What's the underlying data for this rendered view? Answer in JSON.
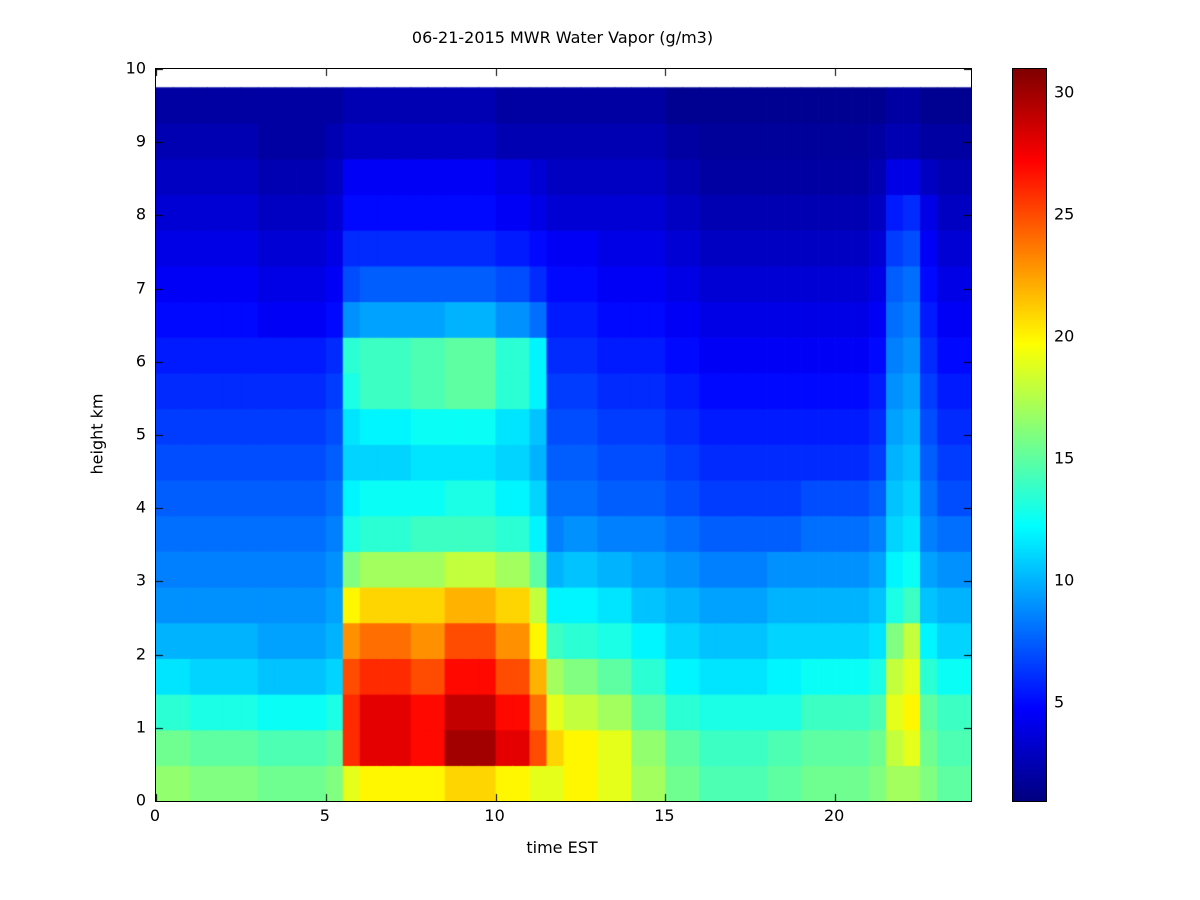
{
  "page": {
    "background_color": "#ffffff",
    "axis_color": "#000000"
  },
  "colorbar": {
    "ticks": [
      5,
      10,
      15,
      20,
      25,
      30
    ],
    "cmin": 1,
    "cmax": 31,
    "colormap": "jet"
  },
  "chart_data": {
    "type": "heatmap",
    "title": "06-21-2015 MWR Water Vapor (g/m3)",
    "xlabel": "time EST",
    "ylabel": "height km",
    "units": "g/m3",
    "colormap": "jet",
    "xlim": [
      0,
      24
    ],
    "ylim": [
      0,
      10
    ],
    "clim": [
      1,
      31
    ],
    "x_ticks": [
      0,
      5,
      10,
      15,
      20
    ],
    "y_ticks": [
      0,
      1,
      2,
      3,
      4,
      5,
      6,
      7,
      8,
      9,
      10
    ],
    "data_top_km": 9.75,
    "x_hours": [
      0.25,
      0.75,
      1.25,
      1.75,
      2.25,
      2.75,
      3.25,
      3.75,
      4.25,
      4.75,
      5.25,
      5.75,
      6.25,
      6.75,
      7.25,
      7.75,
      8.25,
      8.75,
      9.25,
      9.75,
      10.25,
      10.75,
      11.25,
      11.75,
      12.25,
      12.75,
      13.25,
      13.75,
      14.25,
      14.75,
      15.25,
      15.75,
      16.25,
      16.75,
      17.25,
      17.75,
      18.25,
      18.75,
      19.25,
      19.75,
      20.25,
      20.75,
      21.25,
      21.75,
      22.25,
      22.75,
      23.25,
      23.75
    ],
    "heights_km": [
      0.25,
      0.75,
      1.25,
      1.75,
      2.25,
      2.75,
      3.25,
      3.75,
      4.25,
      4.75,
      5.25,
      5.75,
      6.25,
      6.75,
      7.25,
      7.75,
      8.25,
      8.75,
      9.25,
      9.75
    ],
    "values": [
      [
        16.5,
        15.5,
        13.5,
        11.5,
        10,
        9,
        8.5,
        8,
        7.5,
        7,
        6.5,
        6,
        5.5,
        5,
        4.5,
        4,
        3.5,
        3,
        2.5,
        2
      ],
      [
        16.5,
        15.5,
        13.5,
        11.5,
        10,
        9,
        8.5,
        8,
        7.5,
        7,
        6.5,
        6,
        5.5,
        5,
        4.5,
        4,
        3.5,
        3,
        2.5,
        2
      ],
      [
        16,
        15,
        13,
        11,
        10,
        9,
        8.5,
        8,
        7.5,
        7,
        6.5,
        6,
        5.5,
        5,
        4.5,
        4,
        3.5,
        3,
        2.5,
        2
      ],
      [
        16,
        15,
        13,
        11,
        10,
        9,
        8.5,
        8,
        7.5,
        7,
        6.5,
        6,
        5.5,
        5,
        4.5,
        4,
        3.5,
        3,
        2.5,
        2
      ],
      [
        16,
        15,
        13,
        11,
        10,
        9,
        8.5,
        8,
        7.5,
        7,
        6.5,
        6,
        5.5,
        5,
        4.5,
        4,
        3.5,
        3,
        2.5,
        2
      ],
      [
        16,
        15,
        13,
        11,
        10,
        9,
        8.5,
        8,
        7.5,
        7,
        6.5,
        6,
        5.5,
        5,
        4.5,
        4,
        3.5,
        3,
        2.5,
        2
      ],
      [
        15.5,
        14.5,
        12.5,
        10.5,
        9.5,
        9,
        8.5,
        8,
        7.5,
        7,
        6.5,
        6,
        5.5,
        4.5,
        4,
        3.5,
        3,
        2.5,
        2,
        2
      ],
      [
        15.5,
        14.5,
        12.5,
        10.5,
        9.5,
        9,
        8.5,
        8,
        7.5,
        7,
        6.5,
        6,
        5.5,
        4.5,
        4,
        3.5,
        3,
        2.5,
        2,
        2
      ],
      [
        15.5,
        14.5,
        12.5,
        10.5,
        9.5,
        9,
        8.5,
        8,
        7.5,
        7,
        6.5,
        6,
        5.5,
        4.5,
        4,
        3.5,
        3,
        2.5,
        2,
        2
      ],
      [
        15.5,
        14.5,
        12.5,
        10.5,
        9.5,
        9,
        8.5,
        8,
        7.5,
        7,
        6.5,
        6,
        5.5,
        4.5,
        4,
        3.5,
        3,
        2.5,
        2,
        2
      ],
      [
        16,
        15,
        13,
        11,
        10,
        9.5,
        9,
        8.5,
        8,
        7.5,
        7,
        6.5,
        6,
        5,
        4.5,
        4,
        3.5,
        3,
        2.5,
        2
      ],
      [
        19,
        26,
        26,
        25,
        23,
        20,
        16,
        13,
        12,
        11,
        11.5,
        13,
        13.5,
        9,
        7,
        6,
        5,
        4.5,
        3,
        2.5
      ],
      [
        20,
        28,
        28,
        26,
        24,
        21,
        17,
        13.5,
        12.5,
        11,
        12,
        14,
        14,
        9.5,
        7.5,
        6,
        5,
        4.5,
        3,
        2.5
      ],
      [
        20,
        28,
        28,
        26,
        24,
        21,
        17,
        13.5,
        12.5,
        11,
        12,
        14,
        14,
        9.5,
        7.5,
        6,
        5,
        4.5,
        3,
        2.5
      ],
      [
        20,
        28,
        28,
        26,
        24,
        21,
        17,
        13.5,
        12.5,
        11,
        12,
        14,
        14,
        9.5,
        7.5,
        6,
        5,
        4.5,
        3,
        2.5
      ],
      [
        20,
        27,
        27,
        25,
        23,
        21,
        17,
        14,
        12.5,
        11.5,
        12.5,
        14.5,
        14.5,
        9.5,
        7.5,
        6,
        5,
        4.5,
        3,
        2.5
      ],
      [
        20,
        27,
        27,
        25,
        23,
        21,
        17,
        14,
        12.5,
        11.5,
        12.5,
        14.5,
        14.5,
        9.5,
        7.5,
        6,
        5,
        4.5,
        3,
        2.5
      ],
      [
        21,
        30,
        29,
        27,
        25,
        22,
        18,
        14,
        13,
        11.5,
        12.5,
        15,
        15,
        10,
        7.5,
        6,
        5,
        4.5,
        3,
        2.5
      ],
      [
        21,
        30,
        29,
        27,
        25,
        22,
        18,
        14,
        13,
        11.5,
        12.5,
        15,
        15,
        10,
        7.5,
        6,
        5,
        4.5,
        3,
        2.5
      ],
      [
        21,
        30,
        29,
        27,
        25,
        22,
        18,
        14,
        13,
        11.5,
        12.5,
        15,
        15,
        10,
        7.5,
        6,
        5,
        4.5,
        3,
        2.5
      ],
      [
        20,
        28,
        27,
        25,
        23,
        21,
        17,
        13.5,
        12,
        11,
        11.5,
        13.5,
        13.5,
        9,
        7,
        5.5,
        4.5,
        4,
        2.5,
        2
      ],
      [
        20,
        28,
        27,
        25,
        23,
        21,
        17,
        13.5,
        12,
        11,
        11.5,
        13.5,
        13.5,
        9,
        7,
        5.5,
        4.5,
        4,
        2.5,
        2
      ],
      [
        19,
        25,
        24,
        22,
        20,
        18,
        15,
        12,
        11,
        10,
        10.5,
        12,
        12,
        8,
        6,
        5,
        4,
        3.5,
        2.5,
        2
      ],
      [
        19,
        21,
        19,
        17,
        14,
        12,
        10,
        8.5,
        8,
        7.5,
        7,
        6.5,
        6,
        5.5,
        5,
        4.5,
        3.5,
        3,
        2.5,
        2
      ],
      [
        20,
        20,
        18,
        16,
        13.5,
        12,
        10.5,
        9,
        8,
        7.5,
        7,
        6.5,
        6,
        5.5,
        5,
        4.5,
        3.5,
        3,
        2.5,
        2
      ],
      [
        20,
        20,
        18,
        16,
        13.5,
        12,
        10.5,
        9,
        8,
        7.5,
        7,
        6.5,
        6,
        5.5,
        5,
        4.5,
        3.5,
        3,
        2.5,
        2
      ],
      [
        19,
        19,
        17,
        15,
        13,
        11.5,
        10,
        8.5,
        7.5,
        7,
        6.5,
        6,
        5.5,
        5,
        4.5,
        4,
        3.5,
        3,
        2.5,
        2
      ],
      [
        19,
        19,
        17,
        15,
        13,
        11.5,
        10,
        8.5,
        7.5,
        7,
        6.5,
        6,
        5.5,
        5,
        4.5,
        4,
        3.5,
        3,
        2.5,
        2
      ],
      [
        17,
        16.5,
        15,
        13.5,
        12,
        10.5,
        9.5,
        8.5,
        7.5,
        7,
        6.5,
        6,
        5.5,
        5,
        4.5,
        4,
        3.5,
        3,
        2.5,
        2
      ],
      [
        17,
        16.5,
        15,
        13.5,
        12,
        10.5,
        9.5,
        8.5,
        7.5,
        7,
        6.5,
        6,
        5.5,
        5,
        4.5,
        4,
        3.5,
        3,
        2.5,
        2
      ],
      [
        15.5,
        15,
        13.5,
        12,
        11,
        10,
        9,
        8,
        7,
        6.5,
        6,
        5.5,
        5,
        4.5,
        4,
        3.5,
        3,
        2.5,
        2,
        1.5
      ],
      [
        15.5,
        15,
        13.5,
        12,
        11,
        10,
        9,
        8,
        7,
        6.5,
        6,
        5.5,
        5,
        4.5,
        4,
        3.5,
        3,
        2.5,
        2,
        1.5
      ],
      [
        14.5,
        14,
        13,
        11.5,
        10.5,
        9.5,
        8.5,
        7.5,
        6.5,
        6,
        5.5,
        5,
        4.5,
        4,
        3.5,
        3,
        2.5,
        2,
        1.8,
        1.5
      ],
      [
        14.5,
        14,
        13,
        11.5,
        10.5,
        9.5,
        8.5,
        7.5,
        6.5,
        6,
        5.5,
        5,
        4.5,
        4,
        3.5,
        3,
        2.5,
        2,
        1.8,
        1.5
      ],
      [
        14.5,
        14,
        13,
        11.5,
        10.5,
        9.5,
        8.5,
        7.5,
        6.5,
        6,
        5.5,
        5,
        4.5,
        4,
        3.5,
        3,
        2.5,
        2,
        1.8,
        1.5
      ],
      [
        14.5,
        14,
        13,
        11.5,
        10.5,
        9.5,
        8.5,
        7.5,
        6.5,
        6,
        5.5,
        5,
        4.5,
        4,
        3.5,
        3,
        2.5,
        2,
        1.8,
        1.5
      ],
      [
        15,
        14.5,
        13,
        12,
        11,
        10,
        9,
        7.5,
        6.5,
        6,
        5.5,
        5,
        4.5,
        4,
        3.5,
        3,
        2.5,
        2,
        1.8,
        1.5
      ],
      [
        15,
        14.5,
        13,
        12,
        11,
        10,
        9,
        7.5,
        6.5,
        6,
        5.5,
        5,
        4.5,
        4,
        3.5,
        3,
        2.5,
        2,
        1.8,
        1.5
      ],
      [
        15.5,
        15,
        14,
        12.5,
        11,
        10,
        9,
        8,
        7,
        6,
        5.5,
        5,
        4.5,
        4,
        3.5,
        3,
        2.5,
        2,
        1.8,
        1.5
      ],
      [
        15.5,
        15,
        14,
        12.5,
        11,
        10,
        9,
        8,
        7,
        6,
        5.5,
        5,
        4.5,
        4,
        3.5,
        3,
        2.5,
        2,
        1.8,
        1.5
      ],
      [
        15.5,
        15,
        14,
        12.5,
        11,
        10,
        9,
        8,
        7,
        6,
        5.5,
        5,
        4.5,
        4,
        3.5,
        3,
        2.5,
        2,
        1.8,
        1.5
      ],
      [
        15.5,
        15,
        14,
        12.5,
        11,
        10,
        9,
        8,
        7,
        6,
        5.5,
        5,
        4.5,
        4,
        3.5,
        3,
        2.5,
        2,
        1.8,
        1.5
      ],
      [
        16,
        15.5,
        14.5,
        13,
        11.5,
        10.5,
        9.5,
        8.5,
        7.5,
        6.5,
        6,
        5.5,
        5,
        4.5,
        4,
        3.5,
        3,
        2.5,
        2,
        1.5
      ],
      [
        17,
        18,
        19,
        18,
        16,
        13,
        12,
        11,
        10.5,
        10,
        9.5,
        9,
        8.5,
        8,
        7.5,
        6.5,
        5.5,
        4,
        2.5,
        2
      ],
      [
        17,
        19,
        20,
        19,
        18,
        14,
        12.5,
        11.5,
        11,
        10.5,
        10,
        9.5,
        9,
        8.5,
        8,
        7,
        6,
        4,
        2.5,
        2
      ],
      [
        16,
        15.5,
        15,
        13.5,
        12,
        10.5,
        9.5,
        8.5,
        8,
        7.5,
        7,
        6.5,
        6,
        5.5,
        5,
        4.5,
        4,
        3,
        2,
        1.5
      ],
      [
        15,
        14.5,
        14,
        12.5,
        11,
        10,
        9,
        8,
        7,
        6.5,
        6,
        5.5,
        5,
        4.5,
        4,
        3.5,
        3,
        2.5,
        2,
        1.5
      ],
      [
        15,
        14.5,
        14,
        12.5,
        11,
        10,
        9,
        8,
        7,
        6.5,
        6,
        5.5,
        5,
        4.5,
        4,
        3.5,
        3,
        2.5,
        2,
        1.5
      ]
    ]
  }
}
